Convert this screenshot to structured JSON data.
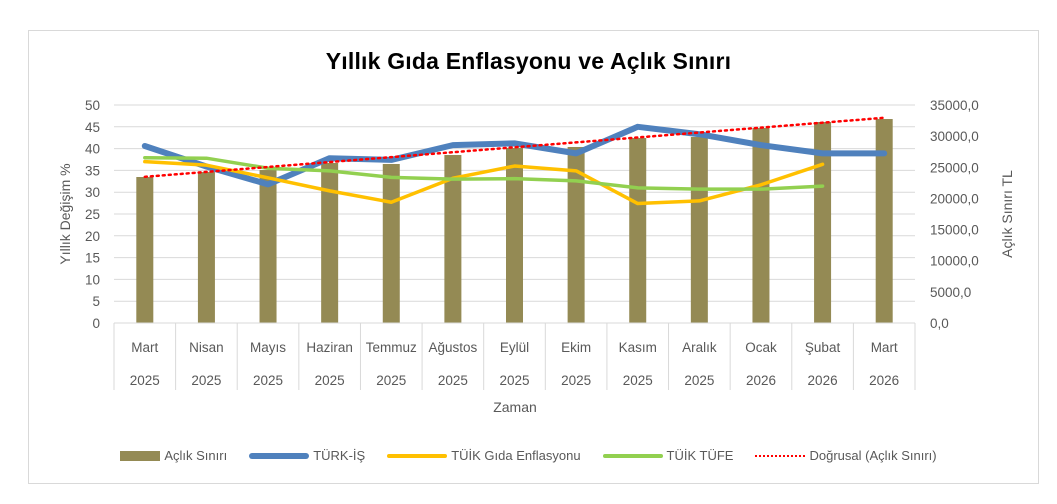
{
  "chart_data": {
    "type": "bar+line",
    "title": "Yıllık Gıda Enflasyonu ve Açlık Sınırı",
    "xlabel": "Zaman",
    "ylabel": "Yıllık Değişim %",
    "y2label": "Açlık Sınırı TL",
    "ylim": [
      0,
      50
    ],
    "y2lim": [
      0,
      35000
    ],
    "yticks": [
      "0",
      "5",
      "10",
      "15",
      "20",
      "25",
      "30",
      "35",
      "40",
      "45",
      "50"
    ],
    "y2ticks": [
      "0,0",
      "5000,0",
      "10000,0",
      "15000,0",
      "20000,0",
      "25000,0",
      "30000,0",
      "35000,0"
    ],
    "grid": true,
    "legend_position": "bottom",
    "categories": [
      {
        "month": "Mart",
        "year": "2025"
      },
      {
        "month": "Nisan",
        "year": "2025"
      },
      {
        "month": "Mayıs",
        "year": "2025"
      },
      {
        "month": "Haziran",
        "year": "2025"
      },
      {
        "month": "Temmuz",
        "year": "2025"
      },
      {
        "month": "Ağustos",
        "year": "2025"
      },
      {
        "month": "Eylül",
        "year": "2025"
      },
      {
        "month": "Ekim",
        "year": "2025"
      },
      {
        "month": "Kasım",
        "year": "2025"
      },
      {
        "month": "Aralık",
        "year": "2025"
      },
      {
        "month": "Ocak",
        "year": "2026"
      },
      {
        "month": "Şubat",
        "year": "2026"
      },
      {
        "month": "Mart",
        "year": "2026"
      }
    ],
    "series": [
      {
        "name": "Açlık Sınırı",
        "type": "bar",
        "axis": "right",
        "color": "#948a54",
        "values": [
          23440,
          24240,
          24560,
          25690,
          25530,
          26970,
          28100,
          28260,
          29700,
          29860,
          31310,
          32270,
          32750
        ]
      },
      {
        "name": "TÜRK-İŞ",
        "type": "line",
        "axis": "left",
        "color": "#4f81bd",
        "width": 6,
        "values": [
          40.6,
          35.9,
          31.8,
          37.8,
          37.4,
          40.8,
          41.2,
          38.9,
          45.0,
          43.3,
          40.8,
          38.9,
          38.9
        ]
      },
      {
        "name": "TÜİK Gıda Enflasyonu",
        "type": "line",
        "axis": "left",
        "color": "#ffc000",
        "width": 3.5,
        "values": [
          37.0,
          36.2,
          33.3,
          30.3,
          27.7,
          33.2,
          36.0,
          34.9,
          27.4,
          28.0,
          31.7,
          36.4,
          null
        ]
      },
      {
        "name": "TÜİK TÜFE",
        "type": "line",
        "axis": "left",
        "color": "#92d050",
        "width": 3.5,
        "values": [
          37.9,
          37.8,
          35.5,
          34.9,
          33.4,
          33.0,
          33.1,
          32.6,
          31.0,
          30.7,
          30.7,
          31.4,
          null
        ]
      },
      {
        "name": "Doğrusal (Açlık Sınırı)",
        "type": "trendline",
        "axis": "right",
        "color": "#ff0000",
        "dash": "dotted",
        "values": [
          23470,
          24260,
          25050,
          25840,
          26630,
          27420,
          28210,
          29000,
          29790,
          30580,
          31370,
          32160,
          32950
        ]
      }
    ]
  },
  "legend": {
    "items": [
      {
        "label": "Açlık Sınırı"
      },
      {
        "label": "TÜRK-İŞ"
      },
      {
        "label": "TÜİK Gıda Enflasyonu"
      },
      {
        "label": "TÜİK TÜFE"
      },
      {
        "label": "Doğrusal (Açlık Sınırı)"
      }
    ]
  }
}
